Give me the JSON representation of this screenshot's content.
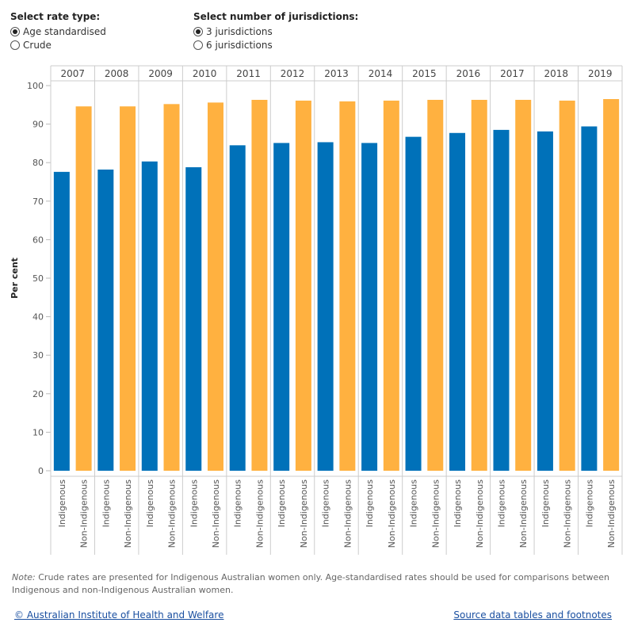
{
  "controls": {
    "rate_type": {
      "title": "Select rate type:",
      "options": [
        "Age standardised",
        "Crude"
      ],
      "selected": 0
    },
    "jurisdictions": {
      "title": "Select number of jurisdictions:",
      "options": [
        "3 jurisdictions",
        "6 jurisdictions"
      ],
      "selected": 0
    }
  },
  "chart_data": {
    "type": "bar",
    "categories": [
      "2007",
      "2008",
      "2009",
      "2010",
      "2011",
      "2012",
      "2013",
      "2014",
      "2015",
      "2016",
      "2017",
      "2018",
      "2019"
    ],
    "series": [
      {
        "name": "Indigenous",
        "color": "#0071b9",
        "values": [
          77.6,
          78.2,
          80.3,
          78.8,
          84.5,
          85.1,
          85.3,
          85.1,
          86.7,
          87.7,
          88.5,
          88.1,
          89.4
        ]
      },
      {
        "name": "Non-Indigenous",
        "color": "#ffb140",
        "values": [
          94.6,
          94.6,
          95.2,
          95.6,
          96.3,
          96.1,
          95.9,
          96.1,
          96.3,
          96.3,
          96.3,
          96.1,
          96.5
        ]
      }
    ],
    "ylabel": "Per cent",
    "ylim": [
      0,
      100
    ],
    "yticks": [
      0,
      10,
      20,
      30,
      40,
      50,
      60,
      70,
      80,
      90,
      100
    ],
    "grid": false
  },
  "note": {
    "label": "Note:",
    "text": " Crude rates are presented for Indigenous Australian women only. Age-standardised rates should be used for comparisons between Indigenous and non-Indigenous Australian women."
  },
  "footer": {
    "copyright": "© Australian Institute of Health and Welfare",
    "source_link": "Source data tables and footnotes"
  }
}
